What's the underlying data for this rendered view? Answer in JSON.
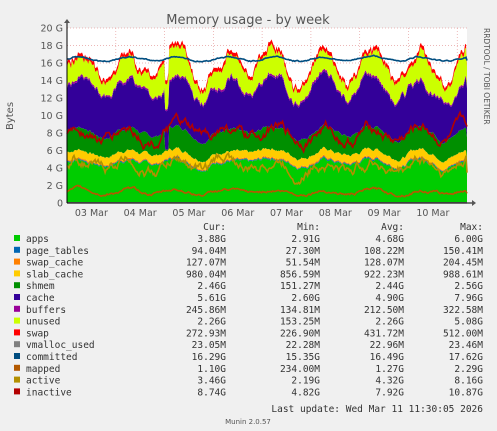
{
  "chart_data": {
    "type": "area",
    "title": "Memory usage - by week",
    "ylabel": "Bytes",
    "side_label": "RRDTOOL / TOBI OETIKER",
    "footer": "Munin 2.0.57",
    "last_update": "Last update: Wed Mar 11 11:30:05 2026",
    "y_ticks": [
      "0",
      "2 G",
      "4 G",
      "6 G",
      "8 G",
      "10 G",
      "12 G",
      "14 G",
      "16 G",
      "18 G",
      "20 G"
    ],
    "ylim": [
      0,
      20
    ],
    "yunit": "G",
    "x_ticks": [
      "03 Mar",
      "04 Mar",
      "05 Mar",
      "06 Mar",
      "07 Mar",
      "08 Mar",
      "09 Mar",
      "10 Mar"
    ],
    "grid": true,
    "legend_headers": {
      "cur": "Cur:",
      "min": "Min:",
      "avg": "Avg:",
      "max": "Max:"
    },
    "series": [
      {
        "name": "apps",
        "color": "#00cc00",
        "cur": "3.88G",
        "min": "2.91G",
        "avg": "4.68G",
        "max": "6.00G"
      },
      {
        "name": "page_tables",
        "color": "#0066b3",
        "cur": "94.04M",
        "min": "27.30M",
        "avg": "108.22M",
        "max": "150.41M"
      },
      {
        "name": "swap_cache",
        "color": "#ff8000",
        "cur": "127.07M",
        "min": "51.54M",
        "avg": "128.07M",
        "max": "204.45M"
      },
      {
        "name": "slab_cache",
        "color": "#ffcc00",
        "cur": "980.04M",
        "min": "856.59M",
        "avg": "922.23M",
        "max": "988.61M"
      },
      {
        "name": "shmem",
        "color": "#008f00",
        "cur": "2.46G",
        "min": "151.27M",
        "avg": "2.44G",
        "max": "2.56G"
      },
      {
        "name": "cache",
        "color": "#330099",
        "cur": "5.61G",
        "min": "2.60G",
        "avg": "4.90G",
        "max": "7.96G"
      },
      {
        "name": "buffers",
        "color": "#990099",
        "cur": "245.86M",
        "min": "134.81M",
        "avg": "212.50M",
        "max": "322.58M"
      },
      {
        "name": "unused",
        "color": "#ccff00",
        "cur": "2.26G",
        "min": "153.25M",
        "avg": "2.26G",
        "max": "5.08G"
      },
      {
        "name": "swap",
        "color": "#ff0000",
        "cur": "272.93M",
        "min": "226.90M",
        "avg": "431.72M",
        "max": "512.00M"
      },
      {
        "name": "vmalloc_used",
        "color": "#808080",
        "cur": "23.05M",
        "min": "22.28M",
        "avg": "22.96M",
        "max": "23.46M"
      },
      {
        "name": "committed",
        "color": "#004d80",
        "cur": "16.29G",
        "min": "15.35G",
        "avg": "16.49G",
        "max": "17.62G"
      },
      {
        "name": "mapped",
        "color": "#b35900",
        "cur": "1.10G",
        "min": "234.00M",
        "avg": "1.27G",
        "max": "2.29G"
      },
      {
        "name": "active",
        "color": "#b38f00",
        "cur": "3.46G",
        "min": "2.19G",
        "avg": "4.32G",
        "max": "8.16G"
      },
      {
        "name": "inactive",
        "color": "#b30000",
        "cur": "8.74G",
        "min": "4.82G",
        "avg": "7.92G",
        "max": "10.87G"
      }
    ]
  }
}
